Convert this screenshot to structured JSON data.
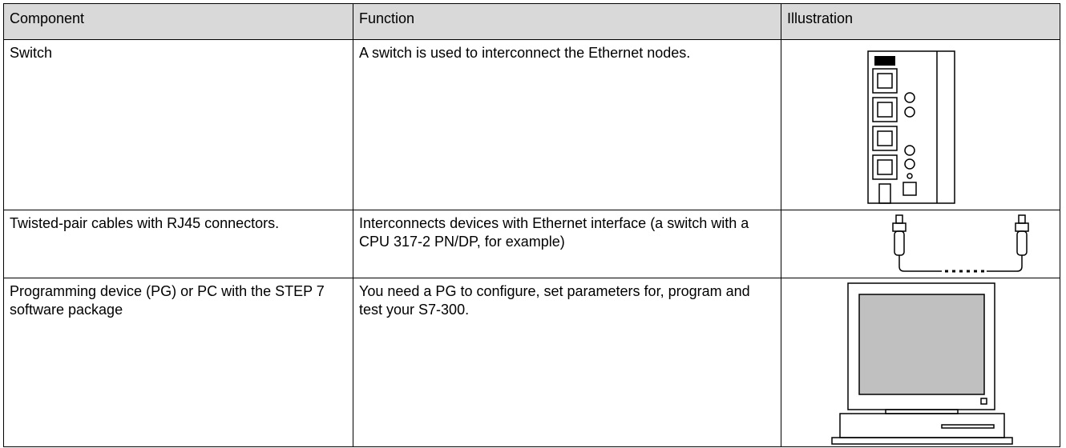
{
  "table": {
    "header": [
      "Component",
      "Function",
      "Illustration"
    ],
    "rows": [
      [
        "Switch",
        "A switch is used to interconnect the Ethernet nodes."
      ],
      [
        "Twisted-pair cables with RJ45 connectors.",
        "Interconnects devices with Ethernet interface (a switch with a CPU 317-2 PN/DP, for example)"
      ],
      [
        "Programming device (PG) or PC with the STEP 7 software package",
        "You need a PG to configure, set parameters for, program and test your S7-300."
      ]
    ]
  }
}
